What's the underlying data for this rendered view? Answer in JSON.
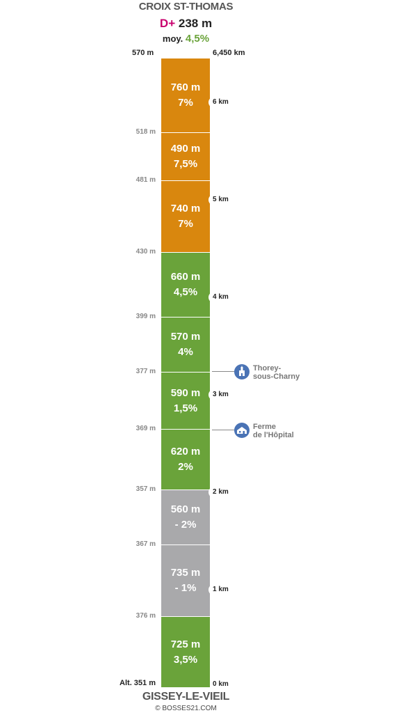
{
  "header": {
    "summit": "CROIX ST-THOMAS",
    "dplus_label": "D+",
    "dplus_value": "238 m",
    "avg_label": "moy.",
    "avg_value": "4,5%",
    "top_altitude": "570 m",
    "total_distance": "6,450 km"
  },
  "footer": {
    "start": "GISSEY-LE-VIEIL",
    "copyright": "© BOSSES21.COM"
  },
  "colors": {
    "steep": "#d9870e",
    "moderate": "#6aa33a",
    "descent": "#a9a9ab",
    "poi": "#4a73b5"
  },
  "segments": [
    {
      "length": "760 m",
      "grade": "7%",
      "category": "steep"
    },
    {
      "length": "490 m",
      "grade": "7,5%",
      "category": "steep"
    },
    {
      "length": "740 m",
      "grade": "7%",
      "category": "steep"
    },
    {
      "length": "660 m",
      "grade": "4,5%",
      "category": "moderate"
    },
    {
      "length": "570 m",
      "grade": "4%",
      "category": "moderate"
    },
    {
      "length": "590 m",
      "grade": "1,5%",
      "category": "moderate"
    },
    {
      "length": "620 m",
      "grade": "2%",
      "category": "moderate"
    },
    {
      "length": "560 m",
      "grade": "- 2%",
      "category": "descent"
    },
    {
      "length": "735 m",
      "grade": "- 1%",
      "category": "descent"
    },
    {
      "length": "725 m",
      "grade": "3,5%",
      "category": "moderate"
    }
  ],
  "altitudes": [
    "518 m",
    "481 m",
    "430 m",
    "399 m",
    "377 m",
    "369 m",
    "357 m",
    "367 m",
    "376 m"
  ],
  "base_altitude": "Alt. 351 m",
  "km_markers": [
    "6 km",
    "5 km",
    "4 km",
    "3 km",
    "2 km",
    "1 km",
    "0 km"
  ],
  "pois": [
    {
      "name_line1": "Thorey-",
      "name_line2": "sous-Charny",
      "icon": "church-icon"
    },
    {
      "name_line1": "Ferme",
      "name_line2": "de l'Hôpital",
      "icon": "farm-icon"
    }
  ]
}
